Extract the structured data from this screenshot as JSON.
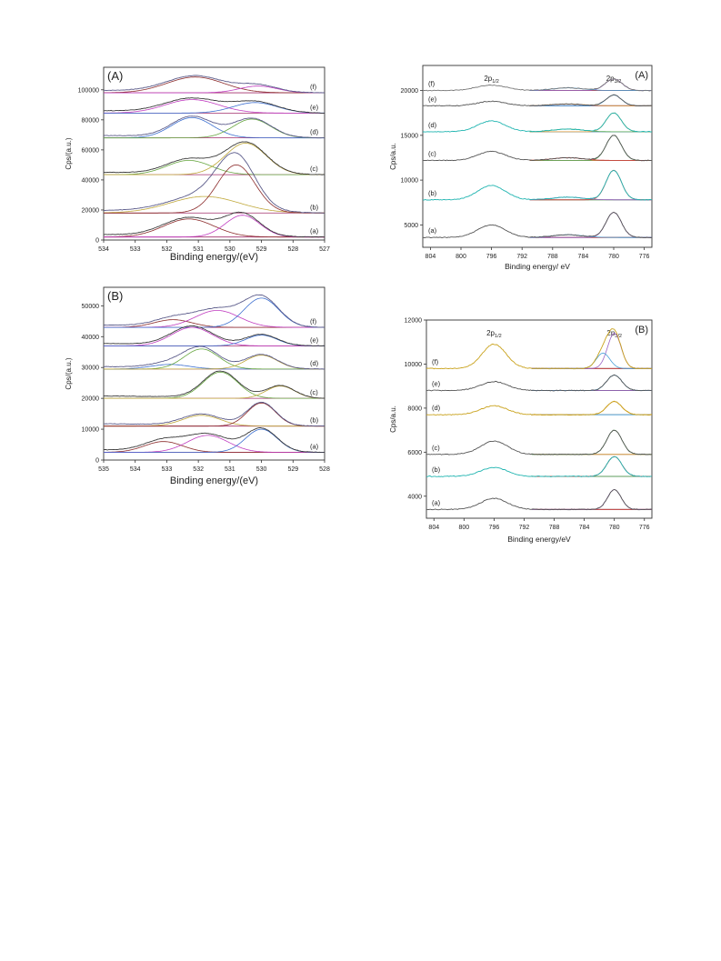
{
  "chart_data": [
    {
      "id": "o1s_A",
      "type": "line",
      "panel_label": "(A)",
      "xlabel": "Binding energy/(eV)",
      "ylabel": "Cps/(a.u.)",
      "x_reversed": true,
      "xlim": [
        534,
        527
      ],
      "ylim": [
        0,
        115000
      ],
      "xticks": [
        534,
        533,
        532,
        531,
        530,
        529,
        528,
        527
      ],
      "yticks": [
        0,
        20000,
        40000,
        60000,
        80000,
        100000
      ],
      "curve_labels": [
        "(f)",
        "(e)",
        "(d)",
        "(c)",
        "(b)",
        "(a)"
      ],
      "series": [
        {
          "label": "(f)",
          "baseline": 98000,
          "peaks": [
            [
              531.1,
              10500,
              0.9
            ],
            [
              529.1,
              4500,
              0.6
            ]
          ]
        },
        {
          "label": "(e)",
          "baseline": 84500,
          "peaks": [
            [
              531.2,
              9000,
              0.85
            ],
            [
              529.2,
              7000,
              0.7
            ]
          ]
        },
        {
          "label": "(d)",
          "baseline": 68000,
          "peaks": [
            [
              531.2,
              13500,
              0.65
            ],
            [
              529.3,
              12500,
              0.6
            ]
          ]
        },
        {
          "label": "(c)",
          "baseline": 43500,
          "peaks": [
            [
              531.3,
              9500,
              0.7
            ],
            [
              529.5,
              21000,
              0.65
            ]
          ]
        },
        {
          "label": "(b)",
          "baseline": 18000,
          "peaks": [
            [
              530.8,
              11000,
              1.1
            ],
            [
              529.8,
              32000,
              0.6
            ]
          ]
        },
        {
          "label": "(a)",
          "baseline": 2000,
          "peaks": [
            [
              531.3,
              12000,
              0.8
            ],
            [
              529.6,
              14500,
              0.55
            ]
          ]
        }
      ]
    },
    {
      "id": "o1s_B",
      "type": "line",
      "panel_label": "(B)",
      "xlabel": "Binding energy/(eV)",
      "ylabel": "Cps/(a.u.)",
      "x_reversed": true,
      "xlim": [
        535,
        528
      ],
      "ylim": [
        0,
        56000
      ],
      "xticks": [
        535,
        534,
        533,
        532,
        531,
        530,
        529,
        528
      ],
      "yticks": [
        0,
        10000,
        20000,
        30000,
        40000,
        50000
      ],
      "curve_labels": [
        "(f)",
        "(e)",
        "(d)",
        "(c)",
        "(b)",
        "(a)"
      ],
      "series": [
        {
          "label": "(f)",
          "baseline": 43000,
          "peaks": [
            [
              532.8,
              2500,
              0.6
            ],
            [
              531.4,
              5500,
              0.7
            ],
            [
              530.0,
              9500,
              0.55
            ]
          ]
        },
        {
          "label": "(e)",
          "baseline": 37000,
          "peaks": [
            [
              532.2,
              6000,
              0.65
            ],
            [
              530.0,
              3500,
              0.5
            ]
          ]
        },
        {
          "label": "(d)",
          "baseline": 29500,
          "peaks": [
            [
              532.9,
              1500,
              0.6
            ],
            [
              531.9,
              6500,
              0.55
            ],
            [
              530.0,
              4500,
              0.5
            ]
          ]
        },
        {
          "label": "(c)",
          "baseline": 20000,
          "peaks": [
            [
              531.3,
              8500,
              0.55
            ],
            [
              529.4,
              4000,
              0.45
            ]
          ]
        },
        {
          "label": "(b)",
          "baseline": 11000,
          "peaks": [
            [
              531.9,
              3500,
              0.6
            ],
            [
              530.0,
              7500,
              0.45
            ]
          ]
        },
        {
          "label": "(a)",
          "baseline": 2500,
          "peaks": [
            [
              533.1,
              3500,
              0.6
            ],
            [
              531.7,
              5500,
              0.65
            ],
            [
              530.0,
              7500,
              0.5
            ]
          ]
        }
      ]
    },
    {
      "id": "cu2p_A",
      "type": "line",
      "panel_label": "(A)",
      "xlabel": "Binding energy/ eV",
      "ylabel": "Cps/a.u.",
      "x_reversed": true,
      "xlim": [
        805,
        775
      ],
      "ylim": [
        2500,
        22800
      ],
      "xticks": [
        804,
        800,
        796,
        792,
        788,
        784,
        780,
        776
      ],
      "yticks": [
        5000,
        10000,
        15000,
        20000
      ],
      "peak_labels": {
        "p12": "2p",
        "p12_sub": "1/2",
        "p32": "2p",
        "p32_sub": "3/2"
      },
      "peak_positions": [
        796,
        780
      ],
      "curve_labels": [
        "(f)",
        "(e)",
        "(d)",
        "(c)",
        "(b)",
        "(a)"
      ],
      "series": [
        {
          "label": "(f)",
          "baseline": 20000,
          "peaks": [
            [
              796,
              600,
              2.0
            ],
            [
              780,
              1300,
              1.1
            ],
            [
              786,
              300,
              2.0
            ]
          ]
        },
        {
          "label": "(e)",
          "baseline": 18300,
          "peaks": [
            [
              796,
              500,
              1.8
            ],
            [
              780,
              1200,
              1.0
            ],
            [
              786,
              200,
              2.0
            ]
          ]
        },
        {
          "label": "(d)",
          "baseline": 15400,
          "peaks": [
            [
              796,
              1200,
              1.8
            ],
            [
              780,
              2100,
              1.0
            ],
            [
              786,
              300,
              2.0
            ]
          ]
        },
        {
          "label": "(c)",
          "baseline": 12200,
          "peaks": [
            [
              796,
              1000,
              1.8
            ],
            [
              780,
              2800,
              1.0
            ],
            [
              786,
              300,
              2.0
            ]
          ]
        },
        {
          "label": "(b)",
          "baseline": 7800,
          "peaks": [
            [
              796,
              1600,
              1.8
            ],
            [
              780,
              3300,
              1.0
            ],
            [
              786,
              300,
              2.0
            ]
          ]
        },
        {
          "label": "(a)",
          "baseline": 3600,
          "peaks": [
            [
              796,
              1400,
              1.8
            ],
            [
              780,
              2800,
              1.0
            ],
            [
              786,
              300,
              2.0
            ]
          ]
        }
      ]
    },
    {
      "id": "cu2p_B",
      "type": "line",
      "panel_label": "(B)",
      "xlabel": "Binding energy/eV",
      "ylabel": "Cps/a.u.",
      "x_reversed": true,
      "xlim": [
        805,
        775
      ],
      "ylim": [
        3000,
        12000
      ],
      "xticks": [
        804,
        800,
        796,
        792,
        788,
        784,
        780,
        776
      ],
      "yticks": [
        4000,
        6000,
        8000,
        10000,
        12000
      ],
      "peak_labels": {
        "p12": "2p",
        "p12_sub": "1/2",
        "p32": "2p",
        "p32_sub": "3/2"
      },
      "peak_positions": [
        796,
        780
      ],
      "curve_labels": [
        "(f)",
        "(e)",
        "(d)",
        "(c)",
        "(b)",
        "(a)"
      ],
      "series": [
        {
          "label": "(f)",
          "baseline": 9800,
          "peaks": [
            [
              796,
              1100,
              1.6
            ],
            [
              780,
              1600,
              0.9
            ],
            [
              781.5,
              700,
              0.9
            ]
          ]
        },
        {
          "label": "(e)",
          "baseline": 8800,
          "peaks": [
            [
              796,
              400,
              1.8
            ],
            [
              780,
              700,
              1.0
            ]
          ]
        },
        {
          "label": "(d)",
          "baseline": 7700,
          "peaks": [
            [
              796,
              400,
              1.8
            ],
            [
              780,
              600,
              1.0
            ]
          ]
        },
        {
          "label": "(c)",
          "baseline": 5900,
          "peaks": [
            [
              796,
              600,
              1.8
            ],
            [
              780,
              1100,
              1.0
            ]
          ]
        },
        {
          "label": "(b)",
          "baseline": 4900,
          "peaks": [
            [
              796,
              400,
              1.8
            ],
            [
              780,
              900,
              1.0
            ]
          ]
        },
        {
          "label": "(a)",
          "baseline": 3400,
          "peaks": [
            [
              796,
              500,
              1.8
            ],
            [
              780,
              900,
              0.9
            ]
          ]
        }
      ]
    }
  ]
}
